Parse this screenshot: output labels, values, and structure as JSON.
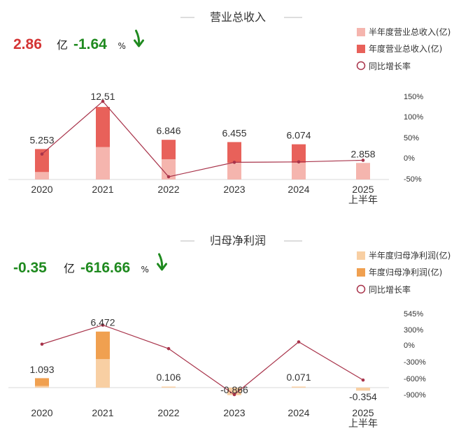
{
  "chart_data": [
    {
      "type": "bar",
      "title": "营业总收入",
      "headline": {
        "value": "2.86",
        "unit": "亿",
        "change": "-1.64",
        "change_unit": "%",
        "arrow": "down-arrow-icon"
      },
      "legend": [
        "半年度营业总收入(亿)",
        "年度营业总收入(亿)",
        "同比增长率"
      ],
      "categories": [
        "2020",
        "2021",
        "2022",
        "2023",
        "2024",
        "2025\n上半年"
      ],
      "series": [
        {
          "name": "半年度营业总收入(亿)",
          "values": [
            1.3,
            5.6,
            3.5,
            2.9,
            2.9,
            2.858
          ],
          "color": "#f5b5ae"
        },
        {
          "name": "年度营业总收入(亿)",
          "values": [
            5.253,
            12.51,
            6.846,
            6.455,
            6.074,
            null
          ],
          "color": "#e8615a"
        },
        {
          "name": "同比增长率",
          "values": [
            10,
            138,
            -45,
            -10,
            -9,
            -5
          ],
          "color": "#a8334a"
        }
      ],
      "data_labels": [
        "5.253",
        "12.51",
        "6.846",
        "6.455",
        "6.074",
        "2.858"
      ],
      "y_right_ticks": [
        "150%",
        "100%",
        "50%",
        "0%",
        "-50%"
      ],
      "y_right_range": [
        -50,
        150
      ],
      "colors": {
        "half": "#f5b5ae",
        "annual": "#e8615a",
        "line": "#a8334a"
      }
    },
    {
      "type": "bar",
      "title": "归母净利润",
      "headline": {
        "value": "-0.35",
        "unit": "亿",
        "change": "-616.66",
        "change_unit": "%",
        "arrow": "down-arrow-icon"
      },
      "legend": [
        "半年度归母净利润(亿)",
        "年度归母净利润(亿)",
        "同比增长率"
      ],
      "categories": [
        "2020",
        "2021",
        "2022",
        "2023",
        "2024",
        "2025\n上半年"
      ],
      "series": [
        {
          "name": "半年度归母净利润(亿)",
          "values": [
            0.2,
            3.3,
            0.106,
            -0.866,
            0.071,
            -0.354
          ],
          "color": "#f8cfa3"
        },
        {
          "name": "年度归母净利润(亿)",
          "values": [
            1.093,
            6.472,
            null,
            null,
            null,
            null
          ],
          "color": "#f0a050"
        },
        {
          "name": "同比增长率",
          "values": [
            0,
            340,
            -80,
            -900,
            40,
            -640
          ],
          "color": "#a8334a"
        }
      ],
      "data_labels": [
        "1.093",
        "6.472",
        "0.106",
        "-0.866",
        "0.071",
        "-0.354"
      ],
      "y_right_ticks": [
        "545%",
        "300%",
        "0%",
        "-300%",
        "-600%",
        "-900%"
      ],
      "y_right_range": [
        -900,
        545
      ],
      "colors": {
        "half": "#f8cfa3",
        "annual": "#f0a050",
        "line": "#a8334a"
      }
    }
  ]
}
